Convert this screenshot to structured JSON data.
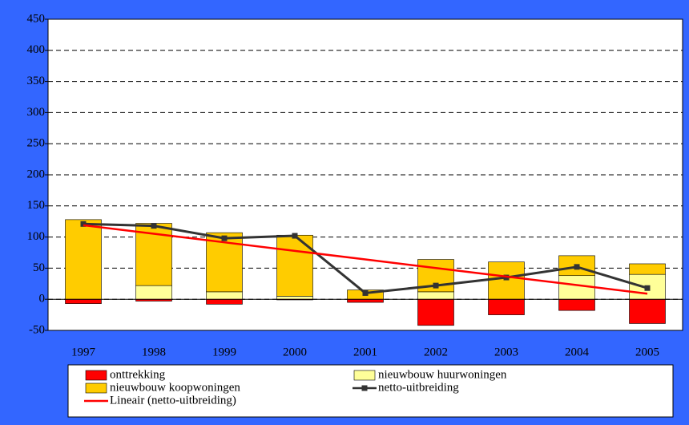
{
  "chart_data": {
    "type": "bar",
    "categories": [
      "1997",
      "1998",
      "1999",
      "2000",
      "2001",
      "2002",
      "2003",
      "2004",
      "2005"
    ],
    "series": [
      {
        "name": "onttrekking",
        "type": "bar",
        "color": "#ff0000",
        "values": [
          -7,
          -3,
          -8,
          -1,
          -5,
          -42,
          -25,
          -18,
          -39
        ]
      },
      {
        "name": "nieuwbouw huurwoningen",
        "type": "bar",
        "color": "#ffff99",
        "values": [
          0,
          22,
          12,
          5,
          0,
          12,
          0,
          38,
          40
        ]
      },
      {
        "name": "nieuwbouw koopwoningen",
        "type": "bar",
        "color": "#ffcc00",
        "values": [
          128,
          100,
          95,
          98,
          15,
          52,
          60,
          32,
          17
        ]
      },
      {
        "name": "netto-uitbreiding",
        "type": "line",
        "color": "#333333",
        "values": [
          121,
          118,
          98,
          102,
          10,
          22,
          35,
          52,
          18
        ]
      },
      {
        "name": "Lineair (netto-uitbreiding)",
        "type": "line",
        "color": "#ff0000",
        "values": [
          119,
          105.25,
          91.5,
          77.75,
          64,
          50.25,
          36.5,
          22.75,
          9
        ]
      }
    ],
    "ylim": [
      -50,
      450
    ],
    "yticks": [
      -50,
      0,
      50,
      100,
      150,
      200,
      250,
      300,
      350,
      400,
      450
    ],
    "grid": true
  }
}
